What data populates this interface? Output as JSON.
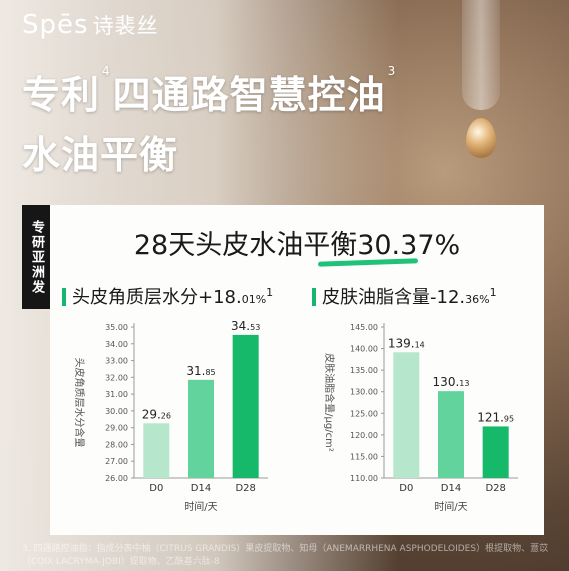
{
  "brand": {
    "latin": "Spēs",
    "cn": "诗裴丝"
  },
  "headline": {
    "line1_a": "专利",
    "sup_a": "4",
    "line1_b": "四通路智慧控油",
    "sup_b": "3",
    "line2": "水油平衡"
  },
  "tag": "专研亚洲发",
  "panel": {
    "title": "28天头皮水油平衡30.37%",
    "sub1": {
      "label": "头皮角质层水分+18.",
      "small": "01%",
      "sup": "1"
    },
    "sub2": {
      "label": "皮肤油脂含量-12.",
      "small": "36%",
      "sup": "1"
    }
  },
  "footnote": "3. 四通路控油指：指成分表中柚（CITRUS GRANDIS）果皮提取物、知母（ANEMARRHENA ASPHODELOIDES）根提取物、薏苡（COIX LACRYMA-JOBI）提取物、乙酰基六肽-8",
  "colors": {
    "light": "#b6e6cc",
    "mid": "#62d39c",
    "strong": "#16b86a"
  },
  "chart_data": [
    {
      "type": "bar",
      "categories": [
        "D0",
        "D14",
        "D28"
      ],
      "values": [
        29.26,
        31.85,
        34.53
      ],
      "value_labels": [
        [
          "29.",
          "26"
        ],
        [
          "31.",
          "85"
        ],
        [
          "34.",
          "53"
        ]
      ],
      "ylabel": "头皮角质层水分含量",
      "xlabel": "时间/天",
      "ylim": [
        26.0,
        35.0
      ],
      "yticks": [
        "26.00",
        "27.00",
        "28.00",
        "29.00",
        "30.00",
        "31.00",
        "32.00",
        "33.00",
        "34.00",
        "35.00"
      ],
      "grid": false
    },
    {
      "type": "bar",
      "categories": [
        "D0",
        "D14",
        "D28"
      ],
      "values": [
        139.14,
        130.13,
        121.95
      ],
      "value_labels": [
        [
          "139.",
          "14"
        ],
        [
          "130.",
          "13"
        ],
        [
          "121.",
          "95"
        ]
      ],
      "ylabel": "皮肤油脂含量/μg/cm²",
      "xlabel": "时间/天",
      "ylim": [
        110.0,
        145.0
      ],
      "yticks": [
        "110.00",
        "115.00",
        "120.00",
        "125.00",
        "130.00",
        "135.00",
        "140.00",
        "145.00"
      ],
      "grid": false
    }
  ]
}
